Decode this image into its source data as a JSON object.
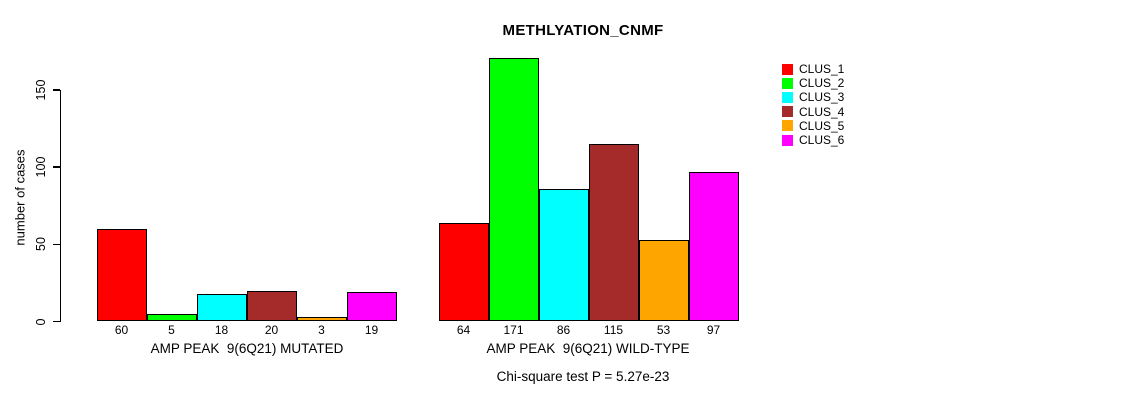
{
  "chart_data": {
    "type": "bar",
    "title": "METHLYATION_CNMF",
    "ylabel": "number of cases",
    "xlabel": "",
    "ylim": [
      0,
      171
    ],
    "yticks": [
      0,
      50,
      100,
      150
    ],
    "grid": false,
    "bar_outline_color": "#000000",
    "bar_value_labels_shown": true,
    "legend_position": "right-outside",
    "categories": [
      "AMP PEAK  9(6Q21) MUTATED",
      "AMP PEAK  9(6Q21) WILD-TYPE"
    ],
    "series": [
      {
        "name": "CLUS_1",
        "color": "#FF0000",
        "values": [
          60,
          64
        ]
      },
      {
        "name": "CLUS_2",
        "color": "#00FF00",
        "values": [
          5,
          171
        ]
      },
      {
        "name": "CLUS_3",
        "color": "#00FFFF",
        "values": [
          18,
          86
        ]
      },
      {
        "name": "CLUS_4",
        "color": "#A52A2A",
        "values": [
          20,
          115
        ]
      },
      {
        "name": "CLUS_5",
        "color": "#FFA500",
        "values": [
          3,
          53
        ]
      },
      {
        "name": "CLUS_6",
        "color": "#FF00FF",
        "values": [
          19,
          97
        ]
      }
    ],
    "annotation": "Chi-square test P = 5.27e-23"
  }
}
